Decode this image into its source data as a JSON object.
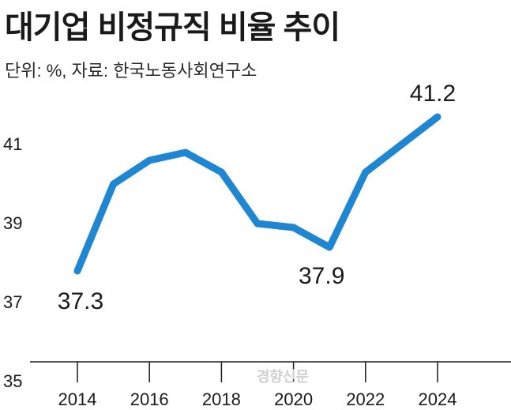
{
  "chart_data": {
    "type": "line",
    "title": "대기업 비정규직 비율 추이",
    "subtitle": "단위: %, 자료: 한국노동사회연구소",
    "x": [
      2014,
      2015,
      2016,
      2017,
      2018,
      2019,
      2020,
      2021,
      2022,
      2023,
      2024
    ],
    "series": [
      {
        "values": [
          37.3,
          39.5,
          40.1,
          40.3,
          39.8,
          38.5,
          38.4,
          37.9,
          39.8,
          40.5,
          41.2
        ]
      }
    ],
    "xticks": [
      "2014",
      "2016",
      "2018",
      "2020",
      "2022",
      "2024"
    ],
    "yticks": [
      "35",
      "37",
      "39",
      "41"
    ],
    "ylim": [
      35,
      42
    ],
    "annotations": [
      {
        "x": 2014,
        "y": 37.3,
        "text": "37.3"
      },
      {
        "x": 2021,
        "y": 37.9,
        "text": "37.9"
      },
      {
        "x": 2024,
        "y": 41.2,
        "text": "41.2"
      }
    ],
    "line_color": "#1f86d1",
    "grid": false
  },
  "watermark": "경향신문"
}
